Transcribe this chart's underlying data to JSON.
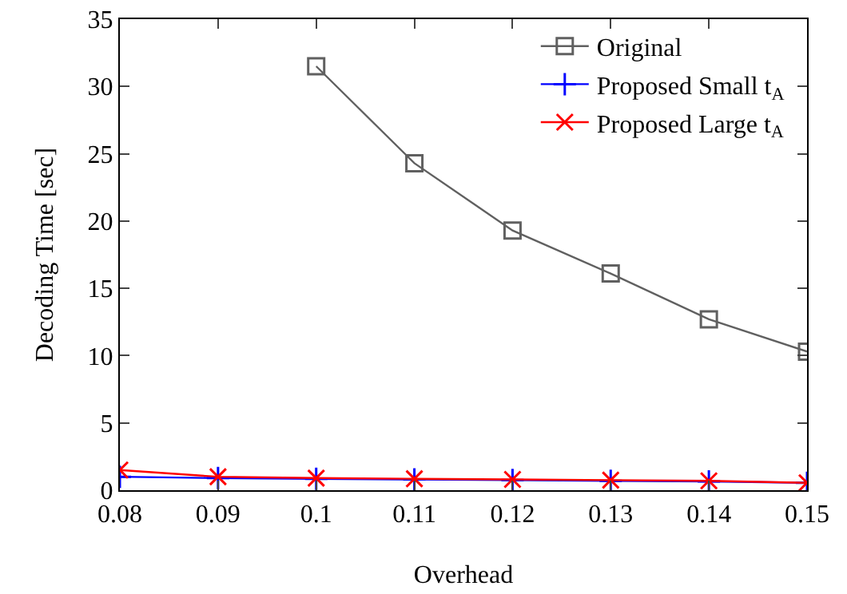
{
  "chart_data": {
    "type": "line",
    "xlabel": "Overhead",
    "ylabel": "Decoding Time [sec]",
    "x": [
      0.08,
      0.09,
      0.1,
      0.11,
      0.12,
      0.13,
      0.14,
      0.15
    ],
    "series": [
      {
        "name": "Original",
        "color": "#606060",
        "marker": "square",
        "values": [
          null,
          null,
          31.5,
          24.3,
          19.3,
          16.1,
          12.7,
          10.3
        ]
      },
      {
        "name": "Proposed Small t$_{A}$",
        "color": "#0000ff",
        "marker": "cross",
        "values": [
          1.0,
          0.9,
          0.85,
          0.8,
          0.75,
          0.7,
          0.65,
          0.55
        ]
      },
      {
        "name": "Proposed Large t$_{A}$",
        "color": "#ff0000",
        "marker": "x",
        "values": [
          1.5,
          1.0,
          0.9,
          0.85,
          0.8,
          0.75,
          0.7,
          0.55
        ]
      }
    ],
    "xlim": [
      0.08,
      0.15
    ],
    "xticks": [
      0.08,
      0.09,
      0.1,
      0.11,
      0.12,
      0.13,
      0.14,
      0.15
    ],
    "ylim": [
      0,
      35
    ],
    "yticks": [
      0,
      5,
      10,
      15,
      20,
      25,
      30,
      35
    ],
    "grid": false,
    "legend": "top right",
    "line_style": "solid"
  }
}
